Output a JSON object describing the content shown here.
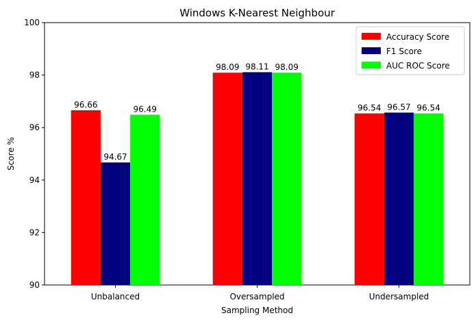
{
  "chart_data": {
    "type": "bar",
    "title": "Windows K-Nearest Neighbour",
    "xlabel": "Sampling Method",
    "ylabel": "Score %",
    "ylim": [
      90,
      100
    ],
    "yticks": [
      90,
      92,
      94,
      96,
      98,
      100
    ],
    "categories": [
      "Unbalanced",
      "Oversampled",
      "Undersampled"
    ],
    "series": [
      {
        "name": "Accuracy Score",
        "color": "#ff0000",
        "values": [
          96.66,
          98.09,
          96.54
        ],
        "labels": [
          "96.66",
          "98.09",
          "96.54"
        ]
      },
      {
        "name": "F1 Score",
        "color": "#000080",
        "values": [
          94.67,
          98.11,
          96.57
        ],
        "labels": [
          "94.67",
          "98.11",
          "96.57"
        ]
      },
      {
        "name": "AUC ROC Score",
        "color": "#00ff00",
        "values": [
          96.49,
          98.09,
          96.54
        ],
        "labels": [
          "96.49",
          "98.09",
          "96.54"
        ]
      }
    ],
    "legend": "top-right",
    "grid": false
  }
}
